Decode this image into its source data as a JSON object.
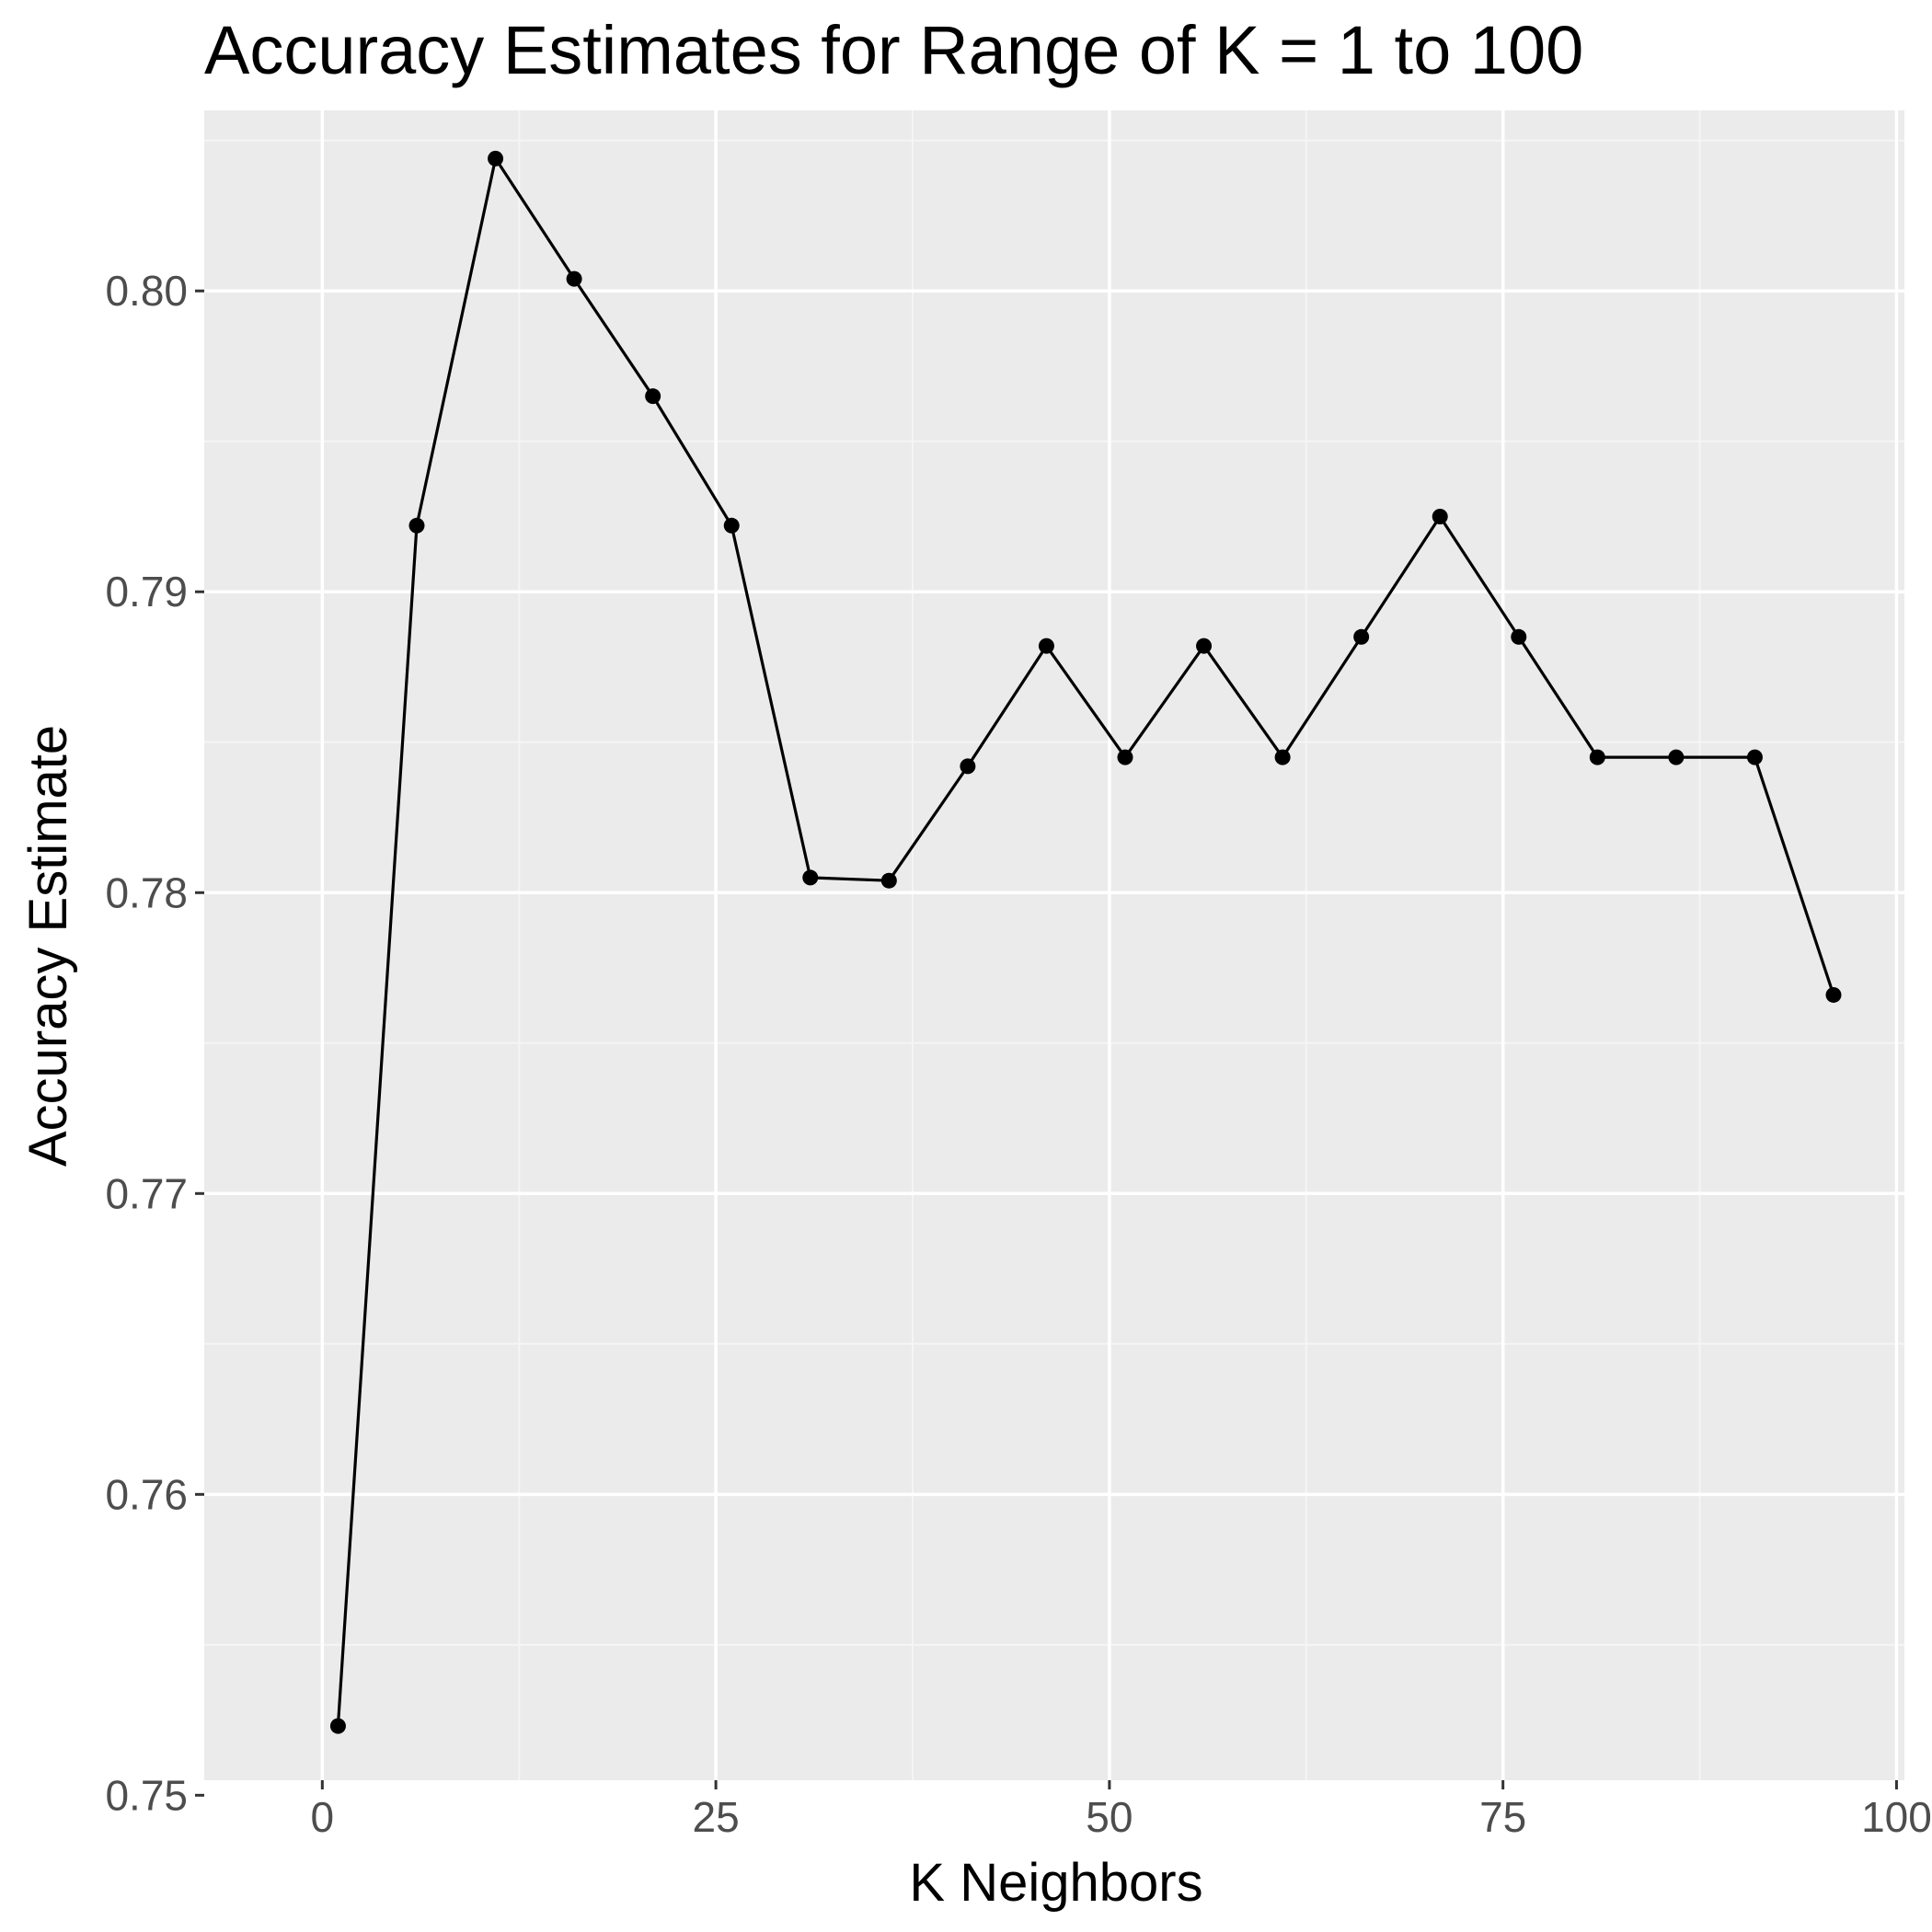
{
  "chart_data": {
    "type": "line",
    "title": "Accuracy Estimates for Range of K = 1 to 100",
    "xlabel": "K Neighbors",
    "ylabel": "Accuracy Estimate",
    "xlim": [
      -7.5,
      100.5
    ],
    "ylim": [
      0.7505,
      0.806
    ],
    "x_ticks": [
      0,
      25,
      50,
      75,
      100
    ],
    "x_tick_labels": [
      "0",
      "25",
      "50",
      "75",
      "100"
    ],
    "y_ticks": [
      0.75,
      0.76,
      0.77,
      0.78,
      0.79,
      0.8
    ],
    "y_tick_labels": [
      "0.75",
      "0.76",
      "0.77",
      "0.78",
      "0.79",
      "0.80"
    ],
    "grid": true,
    "legend": "none",
    "series": [
      {
        "x": [
          1,
          6,
          11,
          16,
          21,
          26,
          31,
          36,
          41,
          46,
          51,
          56,
          61,
          66,
          71,
          76,
          81,
          86,
          91,
          96
        ],
        "y": [
          0.7523,
          0.7922,
          0.8044,
          0.8004,
          0.7965,
          0.7922,
          0.7805,
          0.7804,
          0.7842,
          0.7882,
          0.7845,
          0.7882,
          0.7845,
          0.7885,
          0.7925,
          0.7885,
          0.7845,
          0.7845,
          0.7845,
          0.7766
        ],
        "color": "#000000"
      }
    ],
    "colors": {
      "panel_background": "#ebebeb",
      "grid_major": "#ffffff",
      "grid_minor": "#f5f5f5",
      "tick_label": "#4d4d4d",
      "tick_mark": "#333333"
    }
  }
}
